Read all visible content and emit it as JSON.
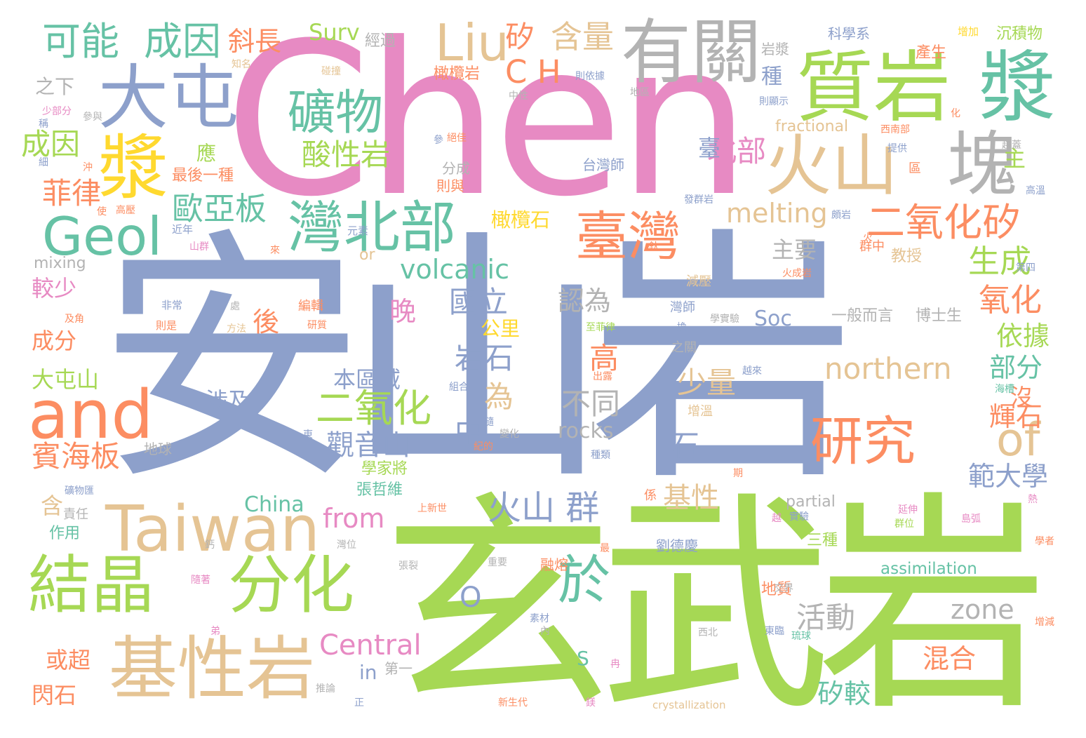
{
  "palette": {
    "blue": "#8da0cb",
    "pink": "#e78ac3",
    "green": "#a6d854",
    "tan": "#e5c494",
    "gray": "#b3b3b3",
    "teal": "#66c2a5",
    "orange": "#fc8d62",
    "yellow": "#ffd92f"
  },
  "words": [
    "安山岩",
    "玄武岩",
    "Chen",
    "質岩",
    "漿",
    "有關",
    "大屯",
    "漿",
    "塊",
    "火山",
    "Liu",
    "可能",
    "成因",
    "礦物",
    "Geol",
    "灣北部",
    "臺灣",
    "and",
    "研究",
    "of",
    "Taiwan",
    "結晶",
    "分化",
    "基性岩",
    "於",
    "二氧化矽",
    "二氧化",
    "北部",
    "矽",
    "含量",
    "斜長",
    "Surv",
    "C H",
    "歐亞板",
    "菲律",
    "成因",
    "酸性岩",
    "melting",
    "生成",
    "氧化",
    "volcanic",
    "northern",
    "國立",
    "認為",
    "主要",
    "依據",
    "岩石",
    "高",
    "後",
    "晚",
    "較少",
    "成分",
    "大屯山",
    "賓海板",
    "觀音山",
    "本區域",
    "為",
    "不同",
    "少量",
    "部分",
    "火山 群",
    "基性",
    "from",
    "Central",
    "China",
    "rocks",
    "zone",
    "活動",
    "範大學",
    "輝石",
    "混合",
    "矽較",
    "石",
    "中",
    "或超",
    "閃石",
    "assimilation",
    "partial",
    "劉德慶",
    "三種",
    "Soc",
    "一般而言",
    "博士生",
    "教授",
    "公里",
    "涉及",
    "含",
    "作用",
    "張哲維",
    "學家將",
    "地質",
    "fractional",
    "橄欖石",
    "橄欖岩",
    "應",
    "最後一種",
    "之下",
    "種",
    "岩漿",
    "科學系",
    "沉積物",
    "產生",
    "增加",
    "經過",
    "mixing",
    "分成",
    "則與",
    "台灣師",
    "crystallization",
    "第一",
    "in",
    "or",
    "O",
    "S",
    "C",
    "臺",
    "主",
    "沒",
    "融熔",
    "責任",
    "地球",
    "近年",
    "元素",
    "山群",
    "非常",
    "則是",
    "方法",
    "及角",
    "少部分",
    "參與",
    "絕佳",
    "提供",
    "區",
    "高溫",
    "西南部",
    "趨蓋",
    "則顯示",
    "則依據",
    "中性",
    "地區",
    "發群岩",
    "火成岩",
    "減壓",
    "灣師",
    "第四",
    "學實驗",
    "群中",
    "至菲律",
    "之關",
    "增溫",
    "出露",
    "越來",
    "組合",
    "變化",
    "種類",
    "重要",
    "張裂",
    "上新世",
    "實驗",
    "延伸",
    "群位",
    "島弧",
    "學者",
    "交界",
    "東臨",
    "琉球",
    "西北",
    "新生代",
    "推論",
    "正",
    "素材",
    "內",
    "鎂",
    "增減",
    "海槽",
    "期",
    "係",
    "礦物匯",
    "灣位",
    "鈣",
    "隨著",
    "弟",
    "細",
    "使",
    "高壓",
    "沖",
    "稱",
    "參",
    "碰撞",
    "知名",
    "鈦",
    "來",
    "處",
    "編輯",
    "研質",
    "紀的",
    "隨",
    "東",
    "越",
    "冉",
    "最",
    "化",
    "火",
    "頗岩",
    "熱",
    "換"
  ]
}
